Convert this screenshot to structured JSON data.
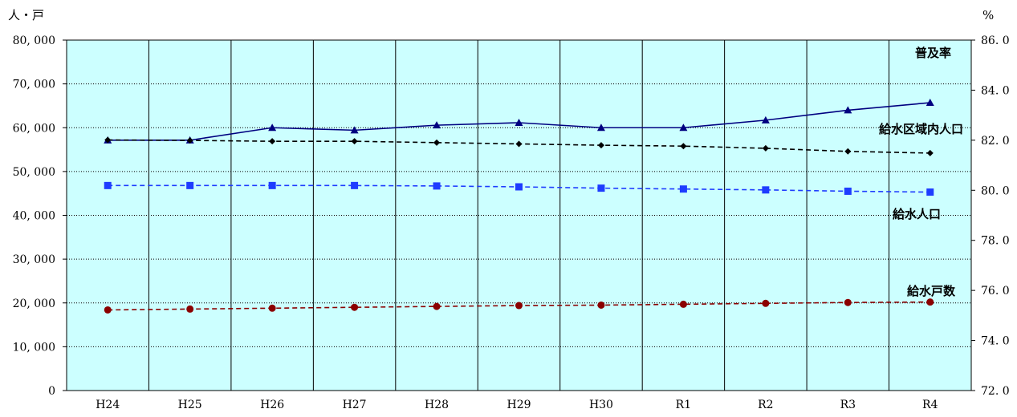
{
  "chart_data": {
    "type": "line",
    "categories": [
      "H24",
      "H25",
      "H26",
      "H27",
      "H28",
      "H29",
      "H30",
      "R1",
      "R2",
      "R3",
      "R4"
    ],
    "y_left": {
      "unit": "人・戸",
      "ylim": [
        0,
        80000
      ],
      "ticks": [
        0,
        10000,
        20000,
        30000,
        40000,
        50000,
        60000,
        70000,
        80000
      ],
      "tick_labels": [
        "0",
        "10, 000",
        "20, 000",
        "30, 000",
        "40, 000",
        "50, 000",
        "60, 000",
        "70, 000",
        "80, 000"
      ]
    },
    "y_right": {
      "unit": "%",
      "ylim": [
        72.0,
        86.0
      ],
      "ticks": [
        72.0,
        74.0,
        76.0,
        78.0,
        80.0,
        82.0,
        84.0,
        86.0
      ],
      "tick_labels": [
        "72. 0",
        "74. 0",
        "76. 0",
        "78. 0",
        "80. 0",
        "82. 0",
        "84. 0",
        "86. 0"
      ]
    },
    "grid": true,
    "series": [
      {
        "name": "普及率",
        "axis": "right",
        "color": "#000080",
        "marker": "triangle",
        "line": "solid",
        "values": [
          82.0,
          82.0,
          82.5,
          82.4,
          82.6,
          82.7,
          82.5,
          82.5,
          82.8,
          83.2,
          83.5
        ]
      },
      {
        "name": "給水区域内人口",
        "axis": "left",
        "color": "#000000",
        "marker": "diamond",
        "line": "dashed",
        "values": [
          57200,
          57100,
          56900,
          56900,
          56600,
          56300,
          56000,
          55800,
          55300,
          54600,
          54200
        ]
      },
      {
        "name": "給水人口",
        "axis": "left",
        "color": "#1e3cff",
        "marker": "square",
        "line": "dashed",
        "values": [
          46800,
          46800,
          46800,
          46800,
          46700,
          46500,
          46200,
          46000,
          45800,
          45500,
          45300
        ]
      },
      {
        "name": "給水戸数",
        "axis": "left",
        "color": "#8b0000",
        "marker": "circle",
        "line": "dashed",
        "values": [
          18400,
          18600,
          18800,
          19000,
          19200,
          19400,
          19500,
          19700,
          19900,
          20100,
          20200
        ]
      }
    ]
  }
}
